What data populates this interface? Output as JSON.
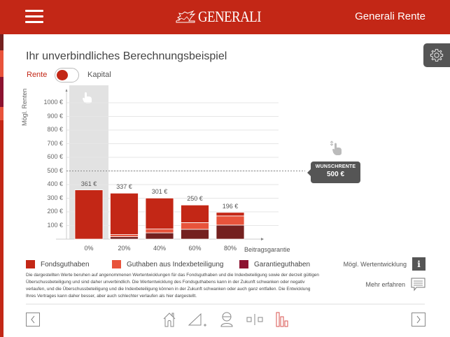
{
  "header": {
    "brand": "GENERALI",
    "app_title": "Generali Rente"
  },
  "page": {
    "title": "Ihr unverbindliches Berechnungsbeispiel"
  },
  "toggle": {
    "left_label": "Rente",
    "right_label": "Kapital",
    "selected": "Rente"
  },
  "colors": {
    "brand_red": "#c32716",
    "fonds": "#c32716",
    "index": "#e8533b",
    "garantie": "#74201f",
    "stripe": [
      "#74201f",
      "#e8533b",
      "#8c1230",
      "#e8533b",
      "#c32716"
    ]
  },
  "tooltip": {
    "title": "WUNSCHRENTE",
    "value": "500 €"
  },
  "chart_data": {
    "type": "bar",
    "stacked": true,
    "title": "",
    "ylabel": "Mögl. Renten",
    "xlabel": "Beitragsgarantie",
    "ylim": [
      0,
      1000
    ],
    "yticks": [
      "1000 €",
      "900 €",
      "800 €",
      "700 €",
      "600 €",
      "500 €",
      "400 €",
      "300 €",
      "200 €",
      "100 €"
    ],
    "ytick_values": [
      1000,
      900,
      800,
      700,
      600,
      500,
      400,
      300,
      200,
      100
    ],
    "categories": [
      "0%",
      "20%",
      "40%",
      "60%",
      "80%"
    ],
    "totals": [
      361,
      337,
      301,
      250,
      196
    ],
    "total_labels": [
      "361 €",
      "337 €",
      "301 €",
      "250 €",
      "196 €"
    ],
    "series": [
      {
        "name": "Garantieguthaben",
        "values": [
          0,
          18,
          46,
          72,
          103
        ]
      },
      {
        "name": "Guthaben aus Indexbeteiligung",
        "values": [
          0,
          15,
          28,
          49,
          67
        ]
      },
      {
        "name": "Fondsguthaben",
        "values": [
          361,
          304,
          227,
          129,
          26
        ]
      }
    ],
    "reference_line": {
      "label": "Wunschrente",
      "value": 500
    },
    "selected_category": "0%",
    "grid": true
  },
  "legend": [
    {
      "label": "Fondsguthaben",
      "color": "#c32716"
    },
    {
      "label": "Guthaben aus Indexbeteiligung",
      "color": "#e8533b"
    },
    {
      "label": "Garantieguthaben",
      "color": "#8c1230"
    }
  ],
  "disclaimer": "Die dargestellten Werte beruhen auf angenommenen Wertentwicklungen für das Fondsguthaben und die Indexbeteiligung sowie der derzeit gültigen Überschussbeteiligung und sind daher unverbindlich. Die Wertentwicklung des Fondsguthabens kann in der Zukunft schwanken oder negativ verlaufen, und die Überschussbeteiligung und die Indexbeteiligung können in der Zukunft schwanken oder auch ganz entfallen. Die Entwicklung Ihres Vertrages kann daher besser, aber auch schlechter verlaufen als hier dargestellt.",
  "actions": {
    "wertentwicklung": "Mögl. Wertentwicklung",
    "mehr_erfahren": "Mehr erfahren"
  },
  "bottom_nav": {
    "icons": [
      "home-icon",
      "triangle-plus-icon",
      "person-icon",
      "compare-icon",
      "bar-chart-icon"
    ],
    "active": "bar-chart-icon"
  }
}
